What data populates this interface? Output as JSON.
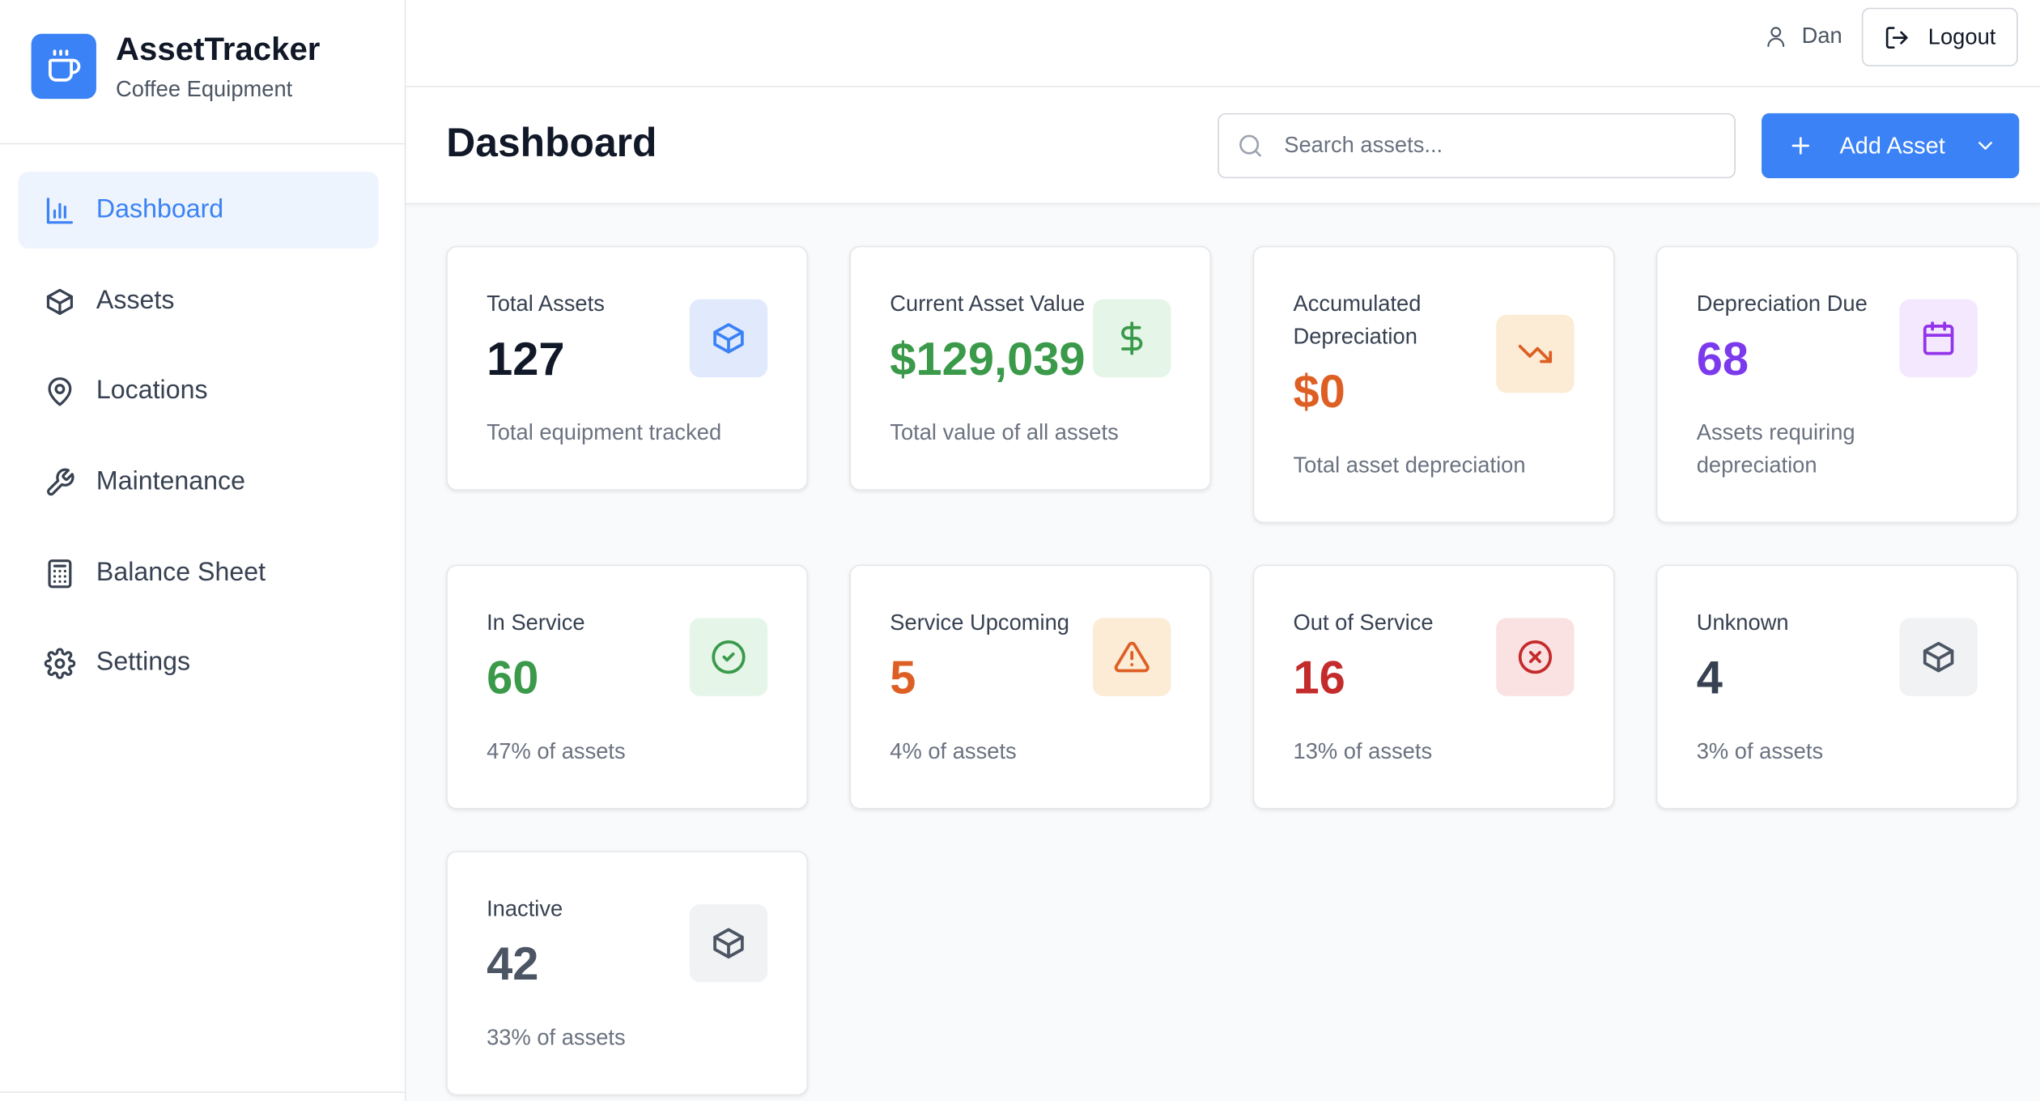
{
  "sidebar": {
    "brand": {
      "title": "AssetTracker",
      "subtitle": "Coffee Equipment"
    },
    "nav": [
      "Dashboard",
      "Assets",
      "Locations",
      "Maintenance",
      "Balance Sheet",
      "Settings"
    ]
  },
  "topbar": {
    "user": "Dan",
    "logout": "Logout"
  },
  "header": {
    "title": "Dashboard",
    "search_placeholder": "Search assets...",
    "add_button": "Add Asset"
  },
  "cards": [
    {
      "title": "Total Assets",
      "value": "127",
      "subtitle": "Total equipment tracked"
    },
    {
      "title": "Current Asset Value",
      "value": "$129,039",
      "subtitle": "Total value of all assets"
    },
    {
      "title": "Accumulated Depreciation",
      "value": "$0",
      "subtitle": "Total asset depreciation"
    },
    {
      "title": "Depreciation Due",
      "value": "68",
      "subtitle": "Assets requiring depreciation"
    },
    {
      "title": "In Service",
      "value": "60",
      "subtitle": "47% of assets"
    },
    {
      "title": "Service Upcoming",
      "value": "5",
      "subtitle": "4% of assets"
    },
    {
      "title": "Out of Service",
      "value": "16",
      "subtitle": "13% of assets"
    },
    {
      "title": "Unknown",
      "value": "4",
      "subtitle": "3% of assets"
    },
    {
      "title": "Inactive",
      "value": "42",
      "subtitle": "33% of assets"
    }
  ]
}
